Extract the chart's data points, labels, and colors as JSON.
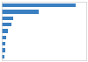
{
  "values": [
    44,
    22,
    6.9,
    5.5,
    3.8,
    2.8,
    2.1,
    1.9,
    1.5
  ],
  "bar_color": "#3a7fc1",
  "background_color": "#ffffff",
  "border_color": "#cccccc",
  "grid_color": "#e0e0e0",
  "xlim": [
    0,
    50
  ],
  "figsize": [
    1.0,
    0.71
  ],
  "dpi": 100
}
